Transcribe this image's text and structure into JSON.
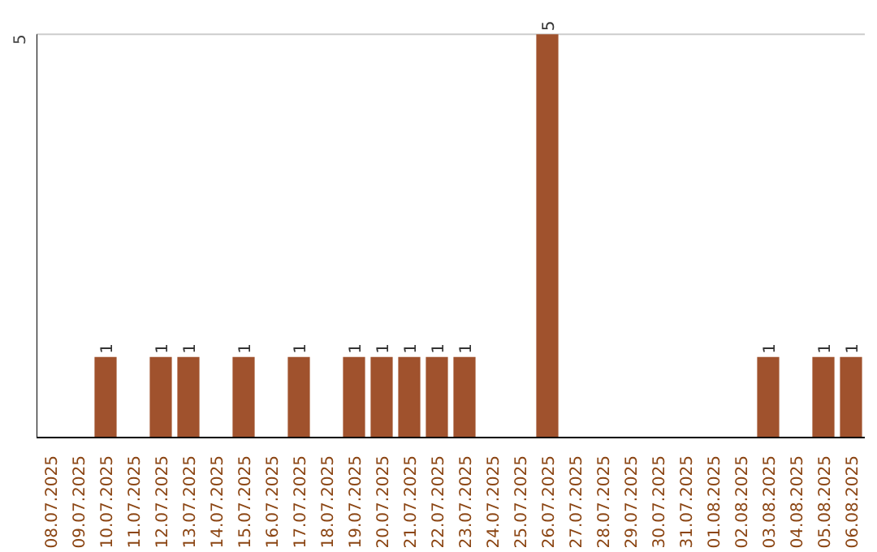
{
  "chart_data": {
    "type": "bar",
    "categories": [
      "08.07.2025",
      "09.07.2025",
      "10.07.2025",
      "11.07.2025",
      "12.07.2025",
      "13.07.2025",
      "14.07.2025",
      "15.07.2025",
      "16.07.2025",
      "17.07.2025",
      "18.07.2025",
      "19.07.2025",
      "20.07.2025",
      "21.07.2025",
      "22.07.2025",
      "23.07.2025",
      "24.07.2025",
      "25.07.2025",
      "26.07.2025",
      "27.07.2025",
      "28.07.2025",
      "29.07.2025",
      "30.07.2025",
      "31.07.2025",
      "01.08.2025",
      "02.08.2025",
      "03.08.2025",
      "04.08.2025",
      "05.08.2025",
      "06.08.2025"
    ],
    "values": [
      0,
      0,
      1,
      0,
      1,
      1,
      0,
      1,
      0,
      1,
      0,
      1,
      1,
      1,
      1,
      1,
      0,
      0,
      5,
      0,
      0,
      0,
      0,
      0,
      0,
      0,
      1,
      0,
      1,
      1
    ],
    "value_labels": [
      null,
      null,
      "1",
      null,
      "1",
      "1",
      null,
      "1",
      null,
      "1",
      null,
      "1",
      "1",
      "1",
      "1",
      "1",
      null,
      null,
      "5",
      null,
      null,
      null,
      null,
      null,
      null,
      null,
      "1",
      null,
      "1",
      "1"
    ],
    "color": "#a0522d",
    "ylim": [
      0,
      5
    ],
    "ref_lines": [
      {
        "axis": "y",
        "value": 5,
        "label": null,
        "color": "#cccccc"
      }
    ],
    "annotations": [
      "5"
    ]
  }
}
